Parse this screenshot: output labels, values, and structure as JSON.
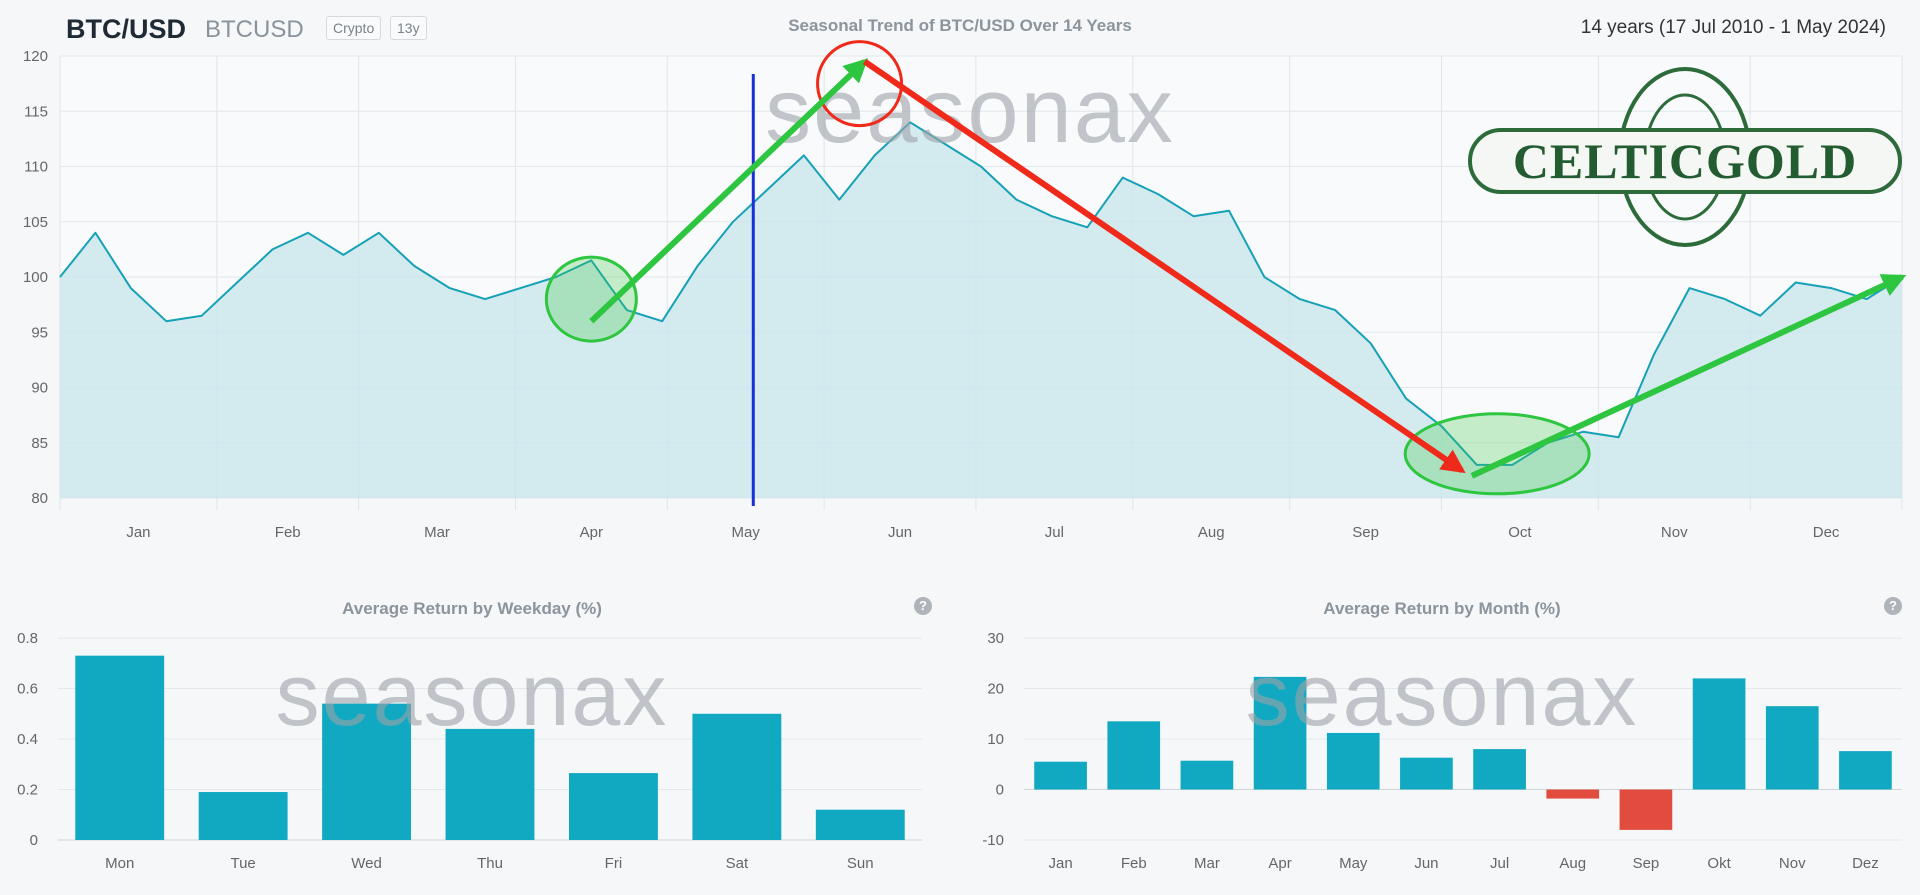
{
  "header": {
    "symbol": "BTC/USD",
    "ticker": "BTCUSD",
    "badge_type": "Crypto",
    "badge_years": "13y",
    "chart_title": "Seasonal Trend of BTC/USD Over 14 Years",
    "period": "14 years (17 Jul 2010 - 1 May 2024)"
  },
  "watermark": "seasonax",
  "logo_text": "CELTICGOLD",
  "colors": {
    "line": "#16a1b7",
    "area": "#c9e6ec",
    "bar": "#10a9c1",
    "bar_negative": "#e24c3f",
    "arrow_up": "#2ec640",
    "arrow_down": "#f02a1a",
    "marker": "#1a2fd6"
  },
  "chart_data": [
    {
      "type": "area",
      "title": "Seasonal Trend of BTC/USD Over 14 Years",
      "x_axis": "day of year",
      "x_tick_labels": [
        "Jan",
        "Feb",
        "Mar",
        "Apr",
        "May",
        "Jun",
        "Jul",
        "Aug",
        "Sep",
        "Oct",
        "Nov",
        "Dec"
      ],
      "ylim": [
        80,
        120
      ],
      "y_ticks": [
        80,
        85,
        90,
        95,
        100,
        105,
        110,
        115,
        120
      ],
      "grid": true,
      "series": [
        {
          "x": [
            1,
            8,
            15,
            22,
            29,
            36,
            43,
            50,
            57,
            64,
            71,
            78,
            85,
            92,
            99,
            106,
            113,
            120,
            127,
            134,
            141,
            148,
            155,
            162,
            169,
            176,
            183,
            190,
            197,
            204,
            211,
            218,
            225,
            232,
            239,
            246,
            253,
            260,
            267,
            274,
            281,
            288,
            295,
            302,
            309,
            316,
            323,
            330,
            337,
            344,
            351,
            358,
            365
          ],
          "values": [
            100,
            104,
            99,
            96,
            96.5,
            99.5,
            102.5,
            104,
            102,
            104,
            101,
            99,
            98,
            99,
            100,
            101.5,
            97,
            96,
            101,
            105,
            108,
            111,
            107,
            111,
            114,
            112,
            110,
            107,
            105.5,
            104.5,
            109,
            107.5,
            105.5,
            106,
            100,
            98,
            97,
            94,
            89,
            86.5,
            83,
            83,
            85,
            86,
            85.5,
            93,
            99,
            98,
            96.5,
            99.5,
            99,
            98,
            100
          ]
        }
      ],
      "annotations": {
        "vertical_marker_day": 138,
        "arrows": [
          {
            "color": "green",
            "from": [
              106,
              96
            ],
            "to": [
              160,
              119.5
            ]
          },
          {
            "color": "red",
            "from": [
              160,
              119.5
            ],
            "to": [
              278,
              82.5
            ]
          },
          {
            "color": "green",
            "from": [
              280,
              82
            ],
            "to": [
              365,
              100
            ]
          }
        ],
        "circles": [
          {
            "color": "green",
            "x": 106,
            "y": 98
          },
          {
            "color": "red",
            "x": 159,
            "y": 117.5
          },
          {
            "color": "green",
            "x": 285,
            "y": 84
          }
        ]
      }
    },
    {
      "type": "bar",
      "title": "Average Return by Weekday (%)",
      "categories": [
        "Mon",
        "Tue",
        "Wed",
        "Thu",
        "Fri",
        "Sat",
        "Sun"
      ],
      "values": [
        0.73,
        0.19,
        0.54,
        0.44,
        0.265,
        0.5,
        0.12
      ],
      "ylim": [
        0,
        0.8
      ],
      "y_ticks": [
        0,
        0.2,
        0.4,
        0.6,
        0.8
      ],
      "y_tick_labels": [
        "0",
        "0.2",
        "0.4",
        "0.6",
        "0.8"
      ]
    },
    {
      "type": "bar",
      "title": "Average Return by Month (%)",
      "categories": [
        "Jan",
        "Feb",
        "Mar",
        "Apr",
        "May",
        "Jun",
        "Jul",
        "Aug",
        "Sep",
        "Okt",
        "Nov",
        "Dez"
      ],
      "values": [
        5.5,
        13.5,
        5.7,
        22.3,
        11.2,
        6.3,
        8,
        -1.8,
        -8,
        22,
        16.5,
        7.6
      ],
      "ylim": [
        -10,
        30
      ],
      "y_ticks": [
        -10,
        0,
        10,
        20,
        30
      ]
    }
  ]
}
